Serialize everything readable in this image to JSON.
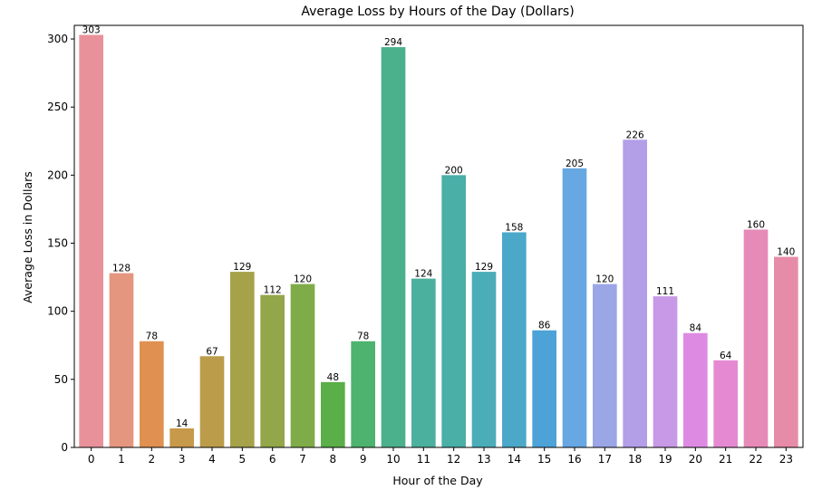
{
  "chart_data": {
    "type": "bar",
    "title": "Average Loss by Hours of the Day (Dollars)",
    "xlabel": "Hour of the Day",
    "ylabel": "Average Loss in Dollars",
    "categories": [
      "0",
      "1",
      "2",
      "3",
      "4",
      "5",
      "6",
      "7",
      "8",
      "9",
      "10",
      "11",
      "12",
      "13",
      "14",
      "15",
      "16",
      "17",
      "18",
      "19",
      "20",
      "21",
      "22",
      "23"
    ],
    "values": [
      303,
      128,
      78,
      14,
      67,
      129,
      112,
      120,
      48,
      78,
      294,
      124,
      200,
      129,
      158,
      86,
      205,
      120,
      226,
      111,
      84,
      64,
      160,
      140
    ],
    "data_labels": [
      "303",
      "128",
      "78",
      "14",
      "67",
      "129",
      "112",
      "120",
      "48",
      "78",
      "294",
      "124",
      "200",
      "129",
      "158",
      "86",
      "205",
      "120",
      "226",
      "111",
      "84",
      "64",
      "160",
      "140"
    ],
    "ylim": [
      0,
      310
    ],
    "yticks": [
      0,
      50,
      100,
      150,
      200,
      250,
      300
    ],
    "grid": false,
    "colors": [
      "#e8919a",
      "#e5967f",
      "#e09050",
      "#c7994a",
      "#bb9c4a",
      "#a6a24a",
      "#93a64a",
      "#7fac48",
      "#5aaf48",
      "#4db36e",
      "#4bb08c",
      "#4bb09e",
      "#49afa7",
      "#4badb8",
      "#4ba8c9",
      "#4da2d8",
      "#67a7e2",
      "#9ba6e6",
      "#b39ee8",
      "#c799e6",
      "#dd8be2",
      "#e58ad2",
      "#e68ab8",
      "#e78ca8"
    ]
  }
}
